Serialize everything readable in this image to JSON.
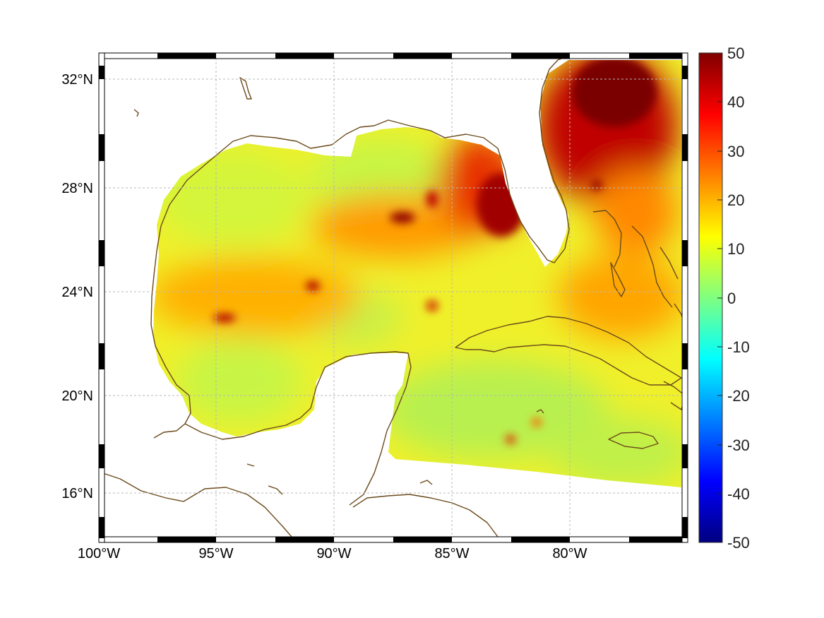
{
  "map": {
    "lon_labels": [
      "100°W",
      "95°W",
      "90°W",
      "85°W",
      "80°W"
    ],
    "lon_values": [
      -100,
      -95,
      -90,
      -85,
      -80
    ],
    "lat_labels": [
      "32°N",
      "28°N",
      "24°N",
      "20°N",
      "16°N"
    ],
    "lat_values": [
      32,
      28,
      24,
      20,
      16
    ],
    "lon_range": [
      -100,
      -75
    ],
    "lat_range": [
      14.3,
      33
    ],
    "grid": true,
    "coastline_color": "#6b4a1a",
    "frame_style": "black-white checkered border"
  },
  "colorbar": {
    "ticks": [
      "50",
      "40",
      "30",
      "20",
      "10",
      "0",
      "-10",
      "-20",
      "-30",
      "-40",
      "-50"
    ],
    "range": [
      -50,
      50
    ],
    "colormap": "jet",
    "placement": "right"
  }
}
